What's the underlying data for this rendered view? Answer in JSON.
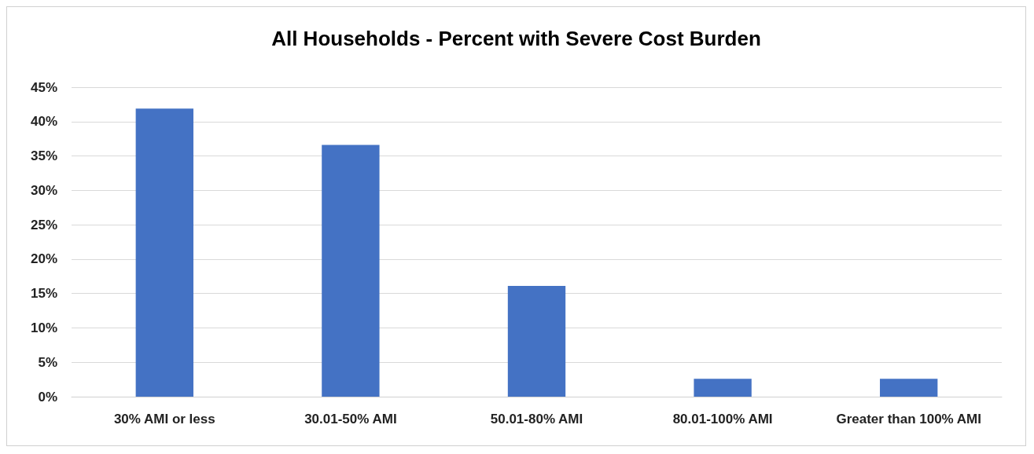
{
  "chart_data": {
    "type": "bar",
    "title": "All Households - Percent with Severe Cost Burden",
    "categories": [
      "30% AMI or less",
      "30.01-50% AMI",
      "50.01-80% AMI",
      "80.01-100% AMI",
      "Greater than 100% AMI"
    ],
    "values": [
      41.9,
      36.6,
      16.1,
      2.6,
      2.6
    ],
    "color": "#4472c4",
    "ylim": [
      0,
      45
    ],
    "yticks": [
      {
        "value": 0,
        "label": "0%"
      },
      {
        "value": 5,
        "label": "5%"
      },
      {
        "value": 10,
        "label": "10%"
      },
      {
        "value": 15,
        "label": "15%"
      },
      {
        "value": 20,
        "label": "20%"
      },
      {
        "value": 25,
        "label": "25%"
      },
      {
        "value": 30,
        "label": "30%"
      },
      {
        "value": 35,
        "label": "35%"
      },
      {
        "value": 40,
        "label": "40%"
      },
      {
        "value": 45,
        "label": "45%"
      }
    ],
    "grid": "y"
  }
}
